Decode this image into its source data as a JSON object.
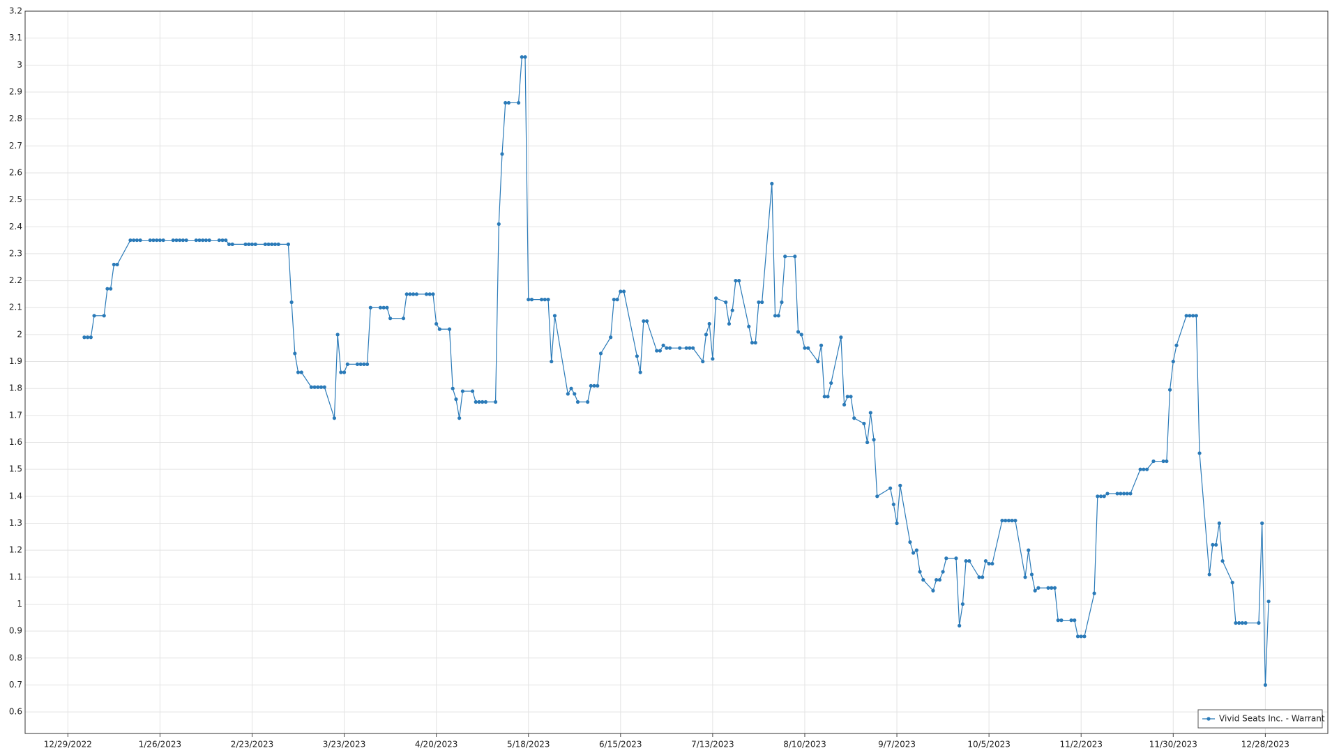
{
  "chart_data": {
    "type": "line",
    "x": [
      "1/3/2023",
      "1/4/2023",
      "1/5/2023",
      "1/6/2023",
      "1/9/2023",
      "1/10/2023",
      "1/11/2023",
      "1/12/2023",
      "1/13/2023",
      "1/17/2023",
      "1/18/2023",
      "1/19/2023",
      "1/20/2023",
      "1/23/2023",
      "1/24/2023",
      "1/25/2023",
      "1/26/2023",
      "1/27/2023",
      "1/30/2023",
      "1/31/2023",
      "2/1/2023",
      "2/2/2023",
      "2/3/2023",
      "2/6/2023",
      "2/7/2023",
      "2/8/2023",
      "2/9/2023",
      "2/10/2023",
      "2/13/2023",
      "2/14/2023",
      "2/15/2023",
      "2/16/2023",
      "2/17/2023",
      "2/21/2023",
      "2/22/2023",
      "2/23/2023",
      "2/24/2023",
      "2/27/2023",
      "2/28/2023",
      "3/1/2023",
      "3/2/2023",
      "3/3/2023",
      "3/6/2023",
      "3/7/2023",
      "3/8/2023",
      "3/9/2023",
      "3/10/2023",
      "3/13/2023",
      "3/14/2023",
      "3/15/2023",
      "3/16/2023",
      "3/17/2023",
      "3/20/2023",
      "3/21/2023",
      "3/22/2023",
      "3/23/2023",
      "3/24/2023",
      "3/27/2023",
      "3/28/2023",
      "3/29/2023",
      "3/30/2023",
      "3/31/2023",
      "4/3/2023",
      "4/4/2023",
      "4/5/2023",
      "4/6/2023",
      "4/10/2023",
      "4/11/2023",
      "4/12/2023",
      "4/13/2023",
      "4/14/2023",
      "4/17/2023",
      "4/18/2023",
      "4/19/2023",
      "4/20/2023",
      "4/21/2023",
      "4/24/2023",
      "4/25/2023",
      "4/26/2023",
      "4/27/2023",
      "4/28/2023",
      "5/1/2023",
      "5/2/2023",
      "5/3/2023",
      "5/4/2023",
      "5/5/2023",
      "5/8/2023",
      "5/9/2023",
      "5/10/2023",
      "5/11/2023",
      "5/12/2023",
      "5/15/2023",
      "5/16/2023",
      "5/17/2023",
      "5/18/2023",
      "5/19/2023",
      "5/22/2023",
      "5/23/2023",
      "5/24/2023",
      "5/25/2023",
      "5/26/2023",
      "5/30/2023",
      "5/31/2023",
      "6/1/2023",
      "6/2/2023",
      "6/5/2023",
      "6/6/2023",
      "6/7/2023",
      "6/8/2023",
      "6/9/2023",
      "6/12/2023",
      "6/13/2023",
      "6/14/2023",
      "6/15/2023",
      "6/16/2023",
      "6/20/2023",
      "6/21/2023",
      "6/22/2023",
      "6/23/2023",
      "6/26/2023",
      "6/27/2023",
      "6/28/2023",
      "6/29/2023",
      "6/30/2023",
      "7/3/2023",
      "7/5/2023",
      "7/6/2023",
      "7/7/2023",
      "7/10/2023",
      "7/11/2023",
      "7/12/2023",
      "7/13/2023",
      "7/14/2023",
      "7/17/2023",
      "7/18/2023",
      "7/19/2023",
      "7/20/2023",
      "7/21/2023",
      "7/24/2023",
      "7/25/2023",
      "7/26/2023",
      "7/27/2023",
      "7/28/2023",
      "7/31/2023",
      "8/1/2023",
      "8/2/2023",
      "8/3/2023",
      "8/4/2023",
      "8/7/2023",
      "8/8/2023",
      "8/9/2023",
      "8/10/2023",
      "8/11/2023",
      "8/14/2023",
      "8/15/2023",
      "8/16/2023",
      "8/17/2023",
      "8/18/2023",
      "8/21/2023",
      "8/22/2023",
      "8/23/2023",
      "8/24/2023",
      "8/25/2023",
      "8/28/2023",
      "8/29/2023",
      "8/30/2023",
      "8/31/2023",
      "9/1/2023",
      "9/5/2023",
      "9/6/2023",
      "9/7/2023",
      "9/8/2023",
      "9/11/2023",
      "9/12/2023",
      "9/13/2023",
      "9/14/2023",
      "9/15/2023",
      "9/18/2023",
      "9/19/2023",
      "9/20/2023",
      "9/21/2023",
      "9/22/2023",
      "9/25/2023",
      "9/26/2023",
      "9/27/2023",
      "9/28/2023",
      "9/29/2023",
      "10/2/2023",
      "10/3/2023",
      "10/4/2023",
      "10/5/2023",
      "10/6/2023",
      "10/9/2023",
      "10/10/2023",
      "10/11/2023",
      "10/12/2023",
      "10/13/2023",
      "10/16/2023",
      "10/17/2023",
      "10/18/2023",
      "10/19/2023",
      "10/20/2023",
      "10/23/2023",
      "10/24/2023",
      "10/25/2023",
      "10/26/2023",
      "10/27/2023",
      "10/30/2023",
      "10/31/2023",
      "11/1/2023",
      "11/2/2023",
      "11/3/2023",
      "11/6/2023",
      "11/7/2023",
      "11/8/2023",
      "11/9/2023",
      "11/10/2023",
      "11/13/2023",
      "11/14/2023",
      "11/15/2023",
      "11/16/2023",
      "11/17/2023",
      "11/20/2023",
      "11/21/2023",
      "11/22/2023",
      "11/24/2023",
      "11/27/2023",
      "11/28/2023",
      "11/29/2023",
      "11/30/2023",
      "12/1/2023",
      "12/4/2023",
      "12/5/2023",
      "12/6/2023",
      "12/7/2023",
      "12/8/2023",
      "12/11/2023",
      "12/12/2023",
      "12/13/2023",
      "12/14/2023",
      "12/15/2023",
      "12/18/2023",
      "12/19/2023",
      "12/20/2023",
      "12/21/2023",
      "12/22/2023",
      "12/26/2023",
      "12/27/2023",
      "12/28/2023",
      "12/29/2023"
    ],
    "series": [
      {
        "name": "Vivid Seats Inc. - Warrant",
        "color": "#2a7ab8",
        "values": [
          1.99,
          1.99,
          1.99,
          2.07,
          2.07,
          2.17,
          2.17,
          2.26,
          2.26,
          2.35,
          2.35,
          2.35,
          2.35,
          2.35,
          2.35,
          2.35,
          2.35,
          2.35,
          2.35,
          2.35,
          2.35,
          2.35,
          2.35,
          2.35,
          2.35,
          2.35,
          2.35,
          2.35,
          2.35,
          2.35,
          2.35,
          2.335,
          2.335,
          2.335,
          2.335,
          2.335,
          2.335,
          2.335,
          2.335,
          2.335,
          2.335,
          2.335,
          2.335,
          2.12,
          1.93,
          1.86,
          1.86,
          1.805,
          1.805,
          1.805,
          1.805,
          1.805,
          1.69,
          2.0,
          1.86,
          1.86,
          1.89,
          1.89,
          1.89,
          1.89,
          1.89,
          2.1,
          2.1,
          2.1,
          2.1,
          2.06,
          2.06,
          2.15,
          2.15,
          2.15,
          2.15,
          2.15,
          2.15,
          2.15,
          2.04,
          2.02,
          2.02,
          1.8,
          1.76,
          1.69,
          1.79,
          1.79,
          1.75,
          1.75,
          1.75,
          1.75,
          1.75,
          2.41,
          2.67,
          2.86,
          2.86,
          2.86,
          3.03,
          3.03,
          2.13,
          2.13,
          2.13,
          2.13,
          2.13,
          1.9,
          2.07,
          1.78,
          1.8,
          1.78,
          1.75,
          1.75,
          1.81,
          1.81,
          1.81,
          1.93,
          1.99,
          2.13,
          2.13,
          2.16,
          2.16,
          1.92,
          1.86,
          2.05,
          2.05,
          1.94,
          1.94,
          1.96,
          1.95,
          1.95,
          1.95,
          1.95,
          1.95,
          1.95,
          1.9,
          2.0,
          2.04,
          1.91,
          2.135,
          2.12,
          2.04,
          2.09,
          2.2,
          2.2,
          2.03,
          1.97,
          1.97,
          2.12,
          2.12,
          2.56,
          2.07,
          2.07,
          2.12,
          2.29,
          2.29,
          2.01,
          2.0,
          1.95,
          1.95,
          1.9,
          1.96,
          1.77,
          1.77,
          1.82,
          1.99,
          1.74,
          1.77,
          1.77,
          1.69,
          1.67,
          1.6,
          1.71,
          1.61,
          1.4,
          1.43,
          1.37,
          1.3,
          1.44,
          1.23,
          1.19,
          1.2,
          1.12,
          1.09,
          1.05,
          1.09,
          1.09,
          1.12,
          1.17,
          1.17,
          0.92,
          1.0,
          1.16,
          1.16,
          1.1,
          1.1,
          1.16,
          1.15,
          1.15,
          1.31,
          1.31,
          1.31,
          1.31,
          1.31,
          1.1,
          1.2,
          1.11,
          1.05,
          1.06,
          1.06,
          1.06,
          1.06,
          0.94,
          0.94,
          0.94,
          0.94,
          0.88,
          0.88,
          0.88,
          1.04,
          1.4,
          1.4,
          1.4,
          1.41,
          1.41,
          1.41,
          1.41,
          1.41,
          1.41,
          1.5,
          1.5,
          1.5,
          1.53,
          1.53,
          1.53,
          1.795,
          1.9,
          1.96,
          2.07,
          2.07,
          2.07,
          2.07,
          1.56,
          1.11,
          1.22,
          1.22,
          1.3,
          1.16,
          1.08,
          0.93,
          0.93,
          0.93,
          0.93,
          0.93,
          1.3,
          0.7,
          1.01
        ]
      }
    ],
    "xlim": [
      "12/16/2022",
      "1/16/2024"
    ],
    "xticks": [
      "12/29/2022",
      "1/26/2023",
      "2/23/2023",
      "3/23/2023",
      "4/20/2023",
      "5/18/2023",
      "6/15/2023",
      "7/13/2023",
      "8/10/2023",
      "9/7/2023",
      "10/5/2023",
      "11/2/2023",
      "11/30/2023",
      "12/28/2023"
    ],
    "ylim": [
      0.52,
      3.2
    ],
    "yticks": [
      0.6,
      0.7,
      0.8,
      0.9,
      1,
      1.1,
      1.2,
      1.3,
      1.4,
      1.5,
      1.6,
      1.7,
      1.8,
      1.9,
      2,
      2.1,
      2.2,
      2.3,
      2.4,
      2.5,
      2.6,
      2.7,
      2.8,
      2.9,
      3,
      3.1,
      3.2
    ],
    "grid": true,
    "legend": "bottom-right"
  }
}
